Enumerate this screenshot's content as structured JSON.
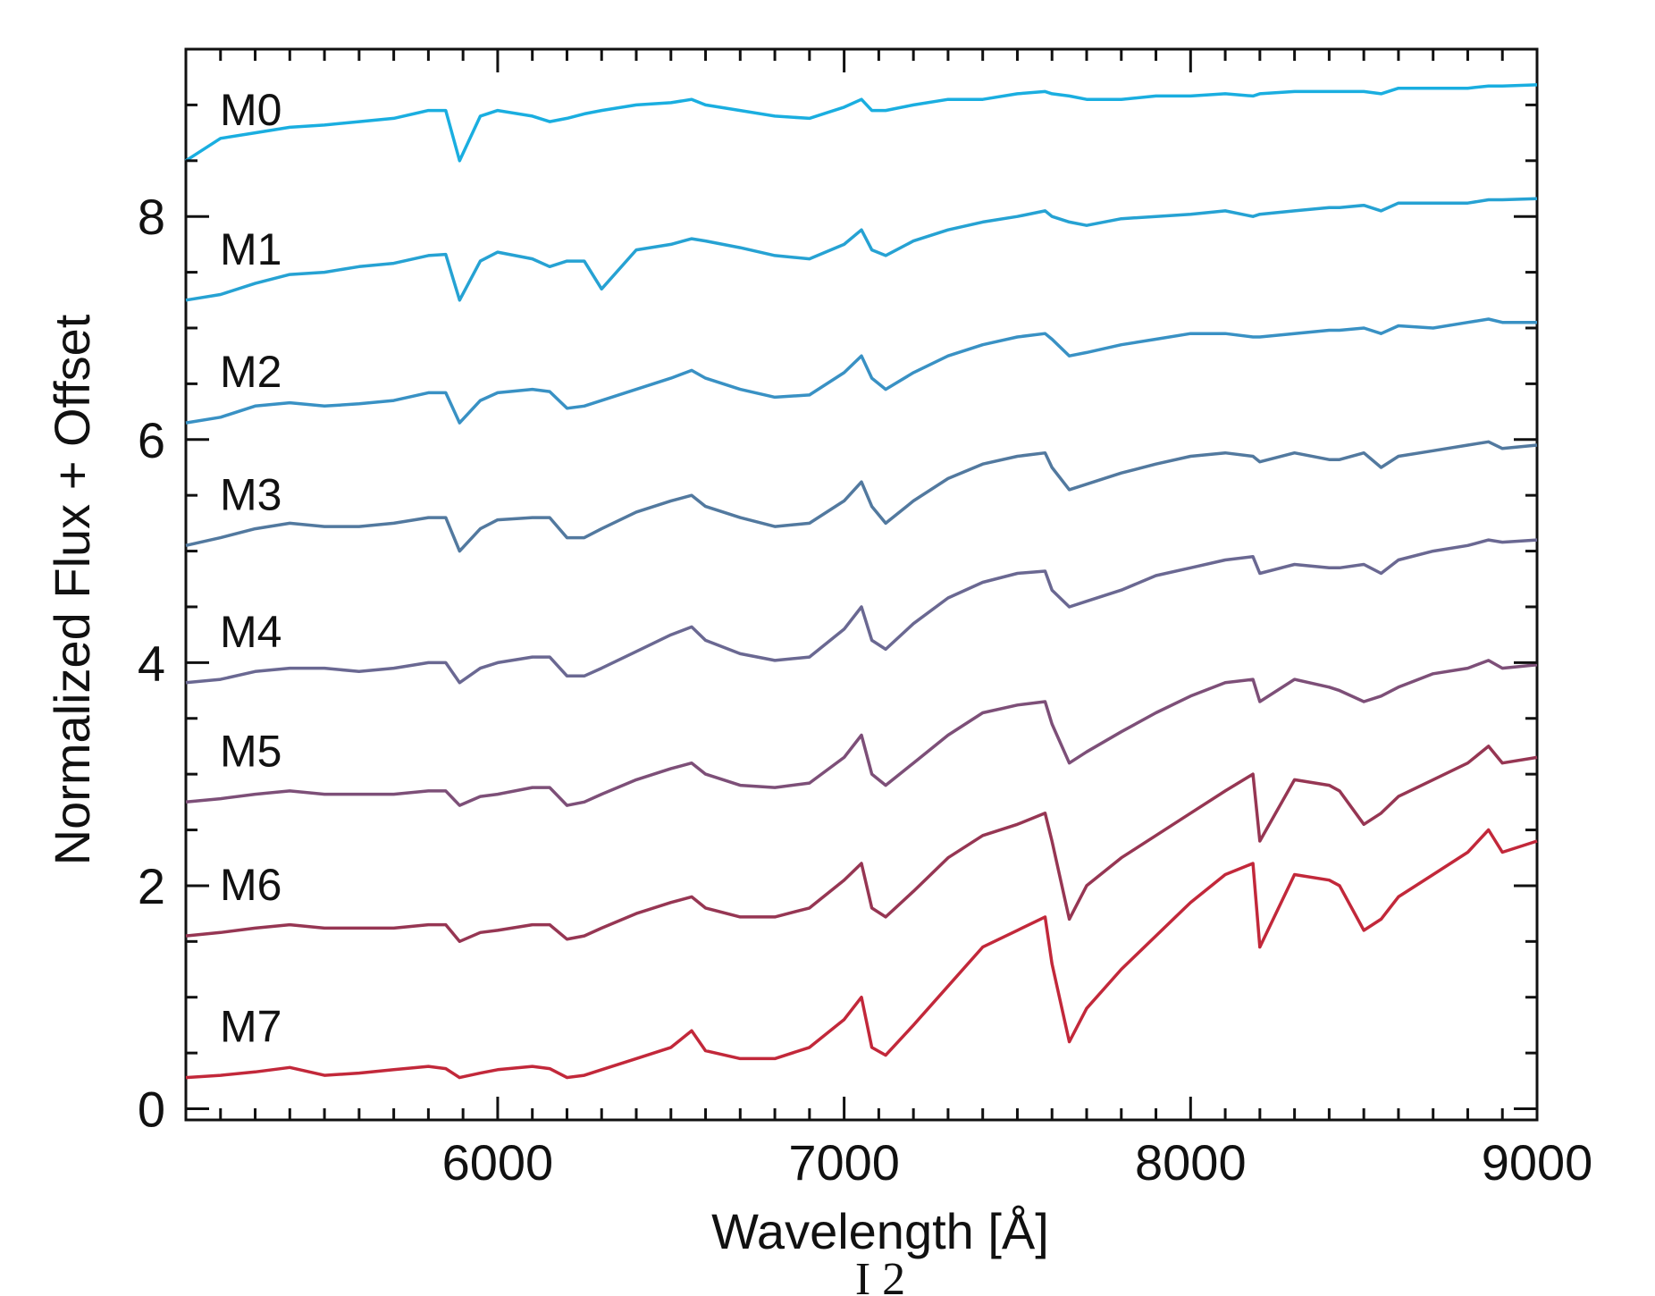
{
  "below_caption": "I    2",
  "chart_data": {
    "type": "line",
    "title": "",
    "xlabel": "Wavelength [Å]",
    "ylabel": "Normalized Flux + Offset",
    "xlim": [
      5100,
      9000
    ],
    "ylim": [
      -0.1,
      9.5
    ],
    "x_ticks": [
      6000,
      7000,
      8000,
      9000
    ],
    "y_ticks": [
      0,
      2,
      4,
      6,
      8
    ],
    "grid": false,
    "legend": "labels placed at left above each curve",
    "x": [
      5100,
      5200,
      5300,
      5400,
      5500,
      5600,
      5700,
      5800,
      5850,
      5890,
      5950,
      6000,
      6100,
      6150,
      6200,
      6250,
      6300,
      6400,
      6500,
      6560,
      6600,
      6700,
      6800,
      6900,
      7000,
      7050,
      7080,
      7120,
      7200,
      7300,
      7400,
      7500,
      7580,
      7600,
      7650,
      7700,
      7800,
      7900,
      8000,
      8100,
      8180,
      8200,
      8300,
      8400,
      8430,
      8500,
      8550,
      8600,
      8700,
      8800,
      8860,
      8900,
      9000
    ],
    "series": [
      {
        "name": "M0",
        "color": "#1aaee0",
        "values": [
          8.5,
          8.7,
          8.75,
          8.8,
          8.82,
          8.85,
          8.88,
          8.95,
          8.95,
          8.5,
          8.9,
          8.95,
          8.9,
          8.85,
          8.88,
          8.92,
          8.95,
          9.0,
          9.02,
          9.05,
          9.0,
          8.95,
          8.9,
          8.88,
          8.98,
          9.05,
          8.95,
          8.95,
          9.0,
          9.05,
          9.05,
          9.1,
          9.12,
          9.1,
          9.08,
          9.05,
          9.05,
          9.08,
          9.08,
          9.1,
          9.08,
          9.1,
          9.12,
          9.12,
          9.12,
          9.12,
          9.1,
          9.15,
          9.15,
          9.15,
          9.17,
          9.17,
          9.18
        ]
      },
      {
        "name": "M1",
        "color": "#26a2d3",
        "values": [
          7.25,
          7.3,
          7.4,
          7.48,
          7.5,
          7.55,
          7.58,
          7.65,
          7.66,
          7.25,
          7.6,
          7.68,
          7.62,
          7.55,
          7.6,
          7.6,
          7.35,
          7.7,
          7.75,
          7.8,
          7.78,
          7.72,
          7.65,
          7.62,
          7.75,
          7.88,
          7.7,
          7.65,
          7.78,
          7.88,
          7.95,
          8.0,
          8.05,
          8.0,
          7.95,
          7.92,
          7.98,
          8.0,
          8.02,
          8.05,
          8.0,
          8.02,
          8.05,
          8.08,
          8.08,
          8.1,
          8.05,
          8.12,
          8.12,
          8.12,
          8.15,
          8.15,
          8.16
        ]
      },
      {
        "name": "M2",
        "color": "#3991c4",
        "values": [
          6.15,
          6.2,
          6.3,
          6.33,
          6.3,
          6.32,
          6.35,
          6.42,
          6.42,
          6.15,
          6.35,
          6.42,
          6.45,
          6.43,
          6.28,
          6.3,
          6.35,
          6.45,
          6.55,
          6.62,
          6.55,
          6.45,
          6.38,
          6.4,
          6.6,
          6.75,
          6.55,
          6.45,
          6.6,
          6.75,
          6.85,
          6.92,
          6.95,
          6.9,
          6.75,
          6.78,
          6.85,
          6.9,
          6.95,
          6.95,
          6.92,
          6.92,
          6.95,
          6.98,
          6.98,
          7.0,
          6.95,
          7.02,
          7.0,
          7.05,
          7.08,
          7.05,
          7.05
        ]
      },
      {
        "name": "M3",
        "color": "#52799f",
        "values": [
          5.05,
          5.12,
          5.2,
          5.25,
          5.22,
          5.22,
          5.25,
          5.3,
          5.3,
          5.0,
          5.2,
          5.28,
          5.3,
          5.3,
          5.12,
          5.12,
          5.2,
          5.35,
          5.45,
          5.5,
          5.4,
          5.3,
          5.22,
          5.25,
          5.45,
          5.62,
          5.4,
          5.25,
          5.45,
          5.65,
          5.78,
          5.85,
          5.88,
          5.75,
          5.55,
          5.6,
          5.7,
          5.78,
          5.85,
          5.88,
          5.85,
          5.8,
          5.88,
          5.82,
          5.82,
          5.88,
          5.75,
          5.85,
          5.9,
          5.95,
          5.98,
          5.92,
          5.95
        ]
      },
      {
        "name": "M4",
        "color": "#6a6892",
        "values": [
          3.82,
          3.85,
          3.92,
          3.95,
          3.95,
          3.92,
          3.95,
          4.0,
          4.0,
          3.82,
          3.95,
          4.0,
          4.05,
          4.05,
          3.88,
          3.88,
          3.95,
          4.1,
          4.25,
          4.32,
          4.2,
          4.08,
          4.02,
          4.05,
          4.3,
          4.5,
          4.2,
          4.12,
          4.35,
          4.58,
          4.72,
          4.8,
          4.82,
          4.65,
          4.5,
          4.55,
          4.65,
          4.78,
          4.85,
          4.92,
          4.95,
          4.8,
          4.88,
          4.85,
          4.85,
          4.88,
          4.8,
          4.92,
          5.0,
          5.05,
          5.1,
          5.08,
          5.1
        ]
      },
      {
        "name": "M5",
        "color": "#7d4f78",
        "values": [
          2.75,
          2.78,
          2.82,
          2.85,
          2.82,
          2.82,
          2.82,
          2.85,
          2.85,
          2.72,
          2.8,
          2.82,
          2.88,
          2.88,
          2.72,
          2.75,
          2.82,
          2.95,
          3.05,
          3.1,
          3.0,
          2.9,
          2.88,
          2.92,
          3.15,
          3.35,
          3.0,
          2.9,
          3.1,
          3.35,
          3.55,
          3.62,
          3.65,
          3.45,
          3.1,
          3.2,
          3.38,
          3.55,
          3.7,
          3.82,
          3.85,
          3.65,
          3.85,
          3.78,
          3.75,
          3.65,
          3.7,
          3.78,
          3.9,
          3.95,
          4.02,
          3.95,
          3.98
        ]
      },
      {
        "name": "M6",
        "color": "#963653",
        "values": [
          1.55,
          1.58,
          1.62,
          1.65,
          1.62,
          1.62,
          1.62,
          1.65,
          1.65,
          1.5,
          1.58,
          1.6,
          1.65,
          1.65,
          1.52,
          1.55,
          1.62,
          1.75,
          1.85,
          1.9,
          1.8,
          1.72,
          1.72,
          1.8,
          2.05,
          2.2,
          1.8,
          1.72,
          1.95,
          2.25,
          2.45,
          2.55,
          2.65,
          2.4,
          1.7,
          2.0,
          2.25,
          2.45,
          2.65,
          2.85,
          3.0,
          2.4,
          2.95,
          2.9,
          2.85,
          2.55,
          2.65,
          2.8,
          2.95,
          3.1,
          3.25,
          3.1,
          3.15
        ]
      },
      {
        "name": "M7",
        "color": "#c2283a",
        "values": [
          0.28,
          0.3,
          0.33,
          0.37,
          0.3,
          0.32,
          0.35,
          0.38,
          0.36,
          0.28,
          0.32,
          0.35,
          0.38,
          0.36,
          0.28,
          0.3,
          0.35,
          0.45,
          0.55,
          0.7,
          0.52,
          0.45,
          0.45,
          0.55,
          0.8,
          1.0,
          0.55,
          0.48,
          0.75,
          1.1,
          1.45,
          1.6,
          1.72,
          1.3,
          0.6,
          0.9,
          1.25,
          1.55,
          1.85,
          2.1,
          2.2,
          1.45,
          2.1,
          2.05,
          2.0,
          1.6,
          1.7,
          1.9,
          2.1,
          2.3,
          2.5,
          2.3,
          2.4
        ]
      }
    ]
  }
}
